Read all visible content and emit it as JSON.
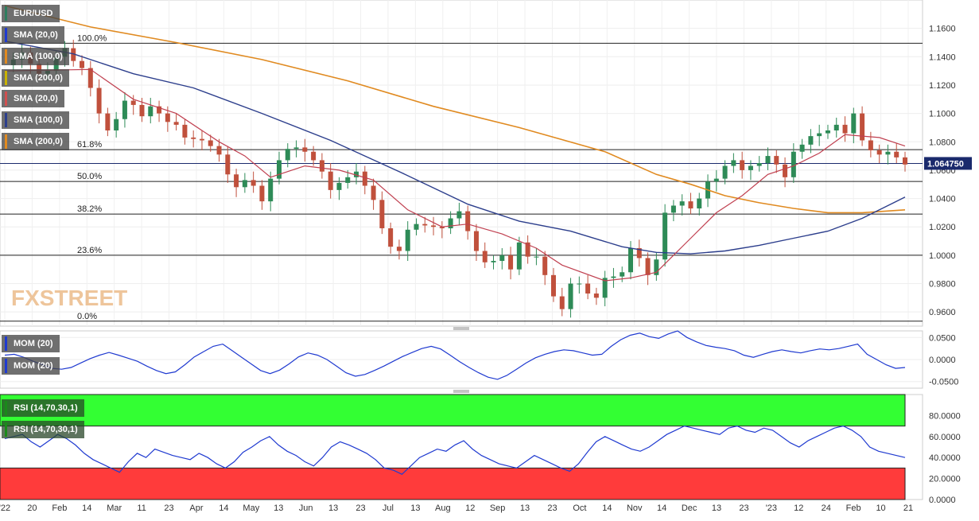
{
  "symbol": "EUR/USD",
  "brand": "FXSTREET",
  "legends": {
    "main": [
      {
        "label": "SMA (20,0)",
        "color": "#1f3ad0"
      },
      {
        "label": "SMA (100,0)",
        "color": "#e08a20"
      },
      {
        "label": "SMA (200,0)",
        "color": "#c9b200"
      },
      {
        "label": "SMA (20,0)",
        "color": "#d05050"
      },
      {
        "label": "SMA (100,0)",
        "color": "#2c3e8c"
      },
      {
        "label": "SMA (200,0)",
        "color": "#e08a20"
      }
    ],
    "mom": [
      {
        "label": "MOM (20)",
        "color": "#1f3ad0"
      },
      {
        "label": "MOM (20)",
        "color": "#1f3ad0"
      }
    ],
    "rsi": [
      {
        "label": "RSI (14,70,30,1)",
        "color": "#1a8a1a"
      },
      {
        "label": "RSI (14,70,30,1)",
        "color": "#1a8a1a"
      }
    ]
  },
  "chart_data": [
    {
      "type": "candlestick",
      "ylim": [
        0.95,
        1.18
      ],
      "yticks": [
        "1.1600",
        "1.1400",
        "1.1200",
        "1.1000",
        "1.0800",
        "1.0600",
        "1.0400",
        "1.0200",
        "1.0000",
        "0.9800",
        "0.9600"
      ],
      "current_price": "1.064750",
      "current_value": 1.06475,
      "x_labels": [
        "'22",
        "20",
        "Feb",
        "14",
        "Mar",
        "11",
        "23",
        "Apr",
        "14",
        "May",
        "13",
        "Jun",
        "13",
        "23",
        "Jul",
        "13",
        "Aug",
        "12",
        "Sep",
        "13",
        "23",
        "Oct",
        "14",
        "Nov",
        "14",
        "Dec",
        "13",
        "23",
        "'23",
        "12",
        "24",
        "Feb",
        "10",
        "21"
      ],
      "fib_levels": [
        {
          "label": "100.0%",
          "value": 1.1495
        },
        {
          "label": "61.8%",
          "value": 1.0745
        },
        {
          "label": "50.0%",
          "value": 1.052
        },
        {
          "label": "38.2%",
          "value": 1.029
        },
        {
          "label": "23.6%",
          "value": 1.0
        },
        {
          "label": "0.0%",
          "value": 0.9535
        }
      ],
      "price_path": [
        [
          0,
          1.134
        ],
        [
          1,
          1.138
        ],
        [
          2,
          1.143
        ],
        [
          3,
          1.135
        ],
        [
          4,
          1.128
        ],
        [
          5,
          1.13
        ],
        [
          6,
          1.14
        ],
        [
          7,
          1.146
        ],
        [
          8,
          1.137
        ],
        [
          9,
          1.132
        ],
        [
          10,
          1.118
        ],
        [
          11,
          1.1
        ],
        [
          12,
          1.088
        ],
        [
          13,
          1.096
        ],
        [
          14,
          1.109
        ],
        [
          15,
          1.106
        ],
        [
          16,
          1.098
        ],
        [
          17,
          1.105
        ],
        [
          18,
          1.1
        ],
        [
          19,
          1.094
        ],
        [
          20,
          1.092
        ],
        [
          21,
          1.083
        ],
        [
          22,
          1.082
        ],
        [
          23,
          1.081
        ],
        [
          24,
          1.077
        ],
        [
          25,
          1.071
        ],
        [
          26,
          1.057
        ],
        [
          27,
          1.048
        ],
        [
          28,
          1.053
        ],
        [
          29,
          1.049
        ],
        [
          30,
          1.038
        ],
        [
          31,
          1.054
        ],
        [
          32,
          1.067
        ],
        [
          33,
          1.075
        ],
        [
          34,
          1.076
        ],
        [
          35,
          1.073
        ],
        [
          36,
          1.067
        ],
        [
          37,
          1.059
        ],
        [
          38,
          1.046
        ],
        [
          39,
          1.051
        ],
        [
          40,
          1.055
        ],
        [
          41,
          1.059
        ],
        [
          42,
          1.049
        ],
        [
          43,
          1.039
        ],
        [
          44,
          1.019
        ],
        [
          45,
          1.006
        ],
        [
          46,
          1.003
        ],
        [
          47,
          1.018
        ],
        [
          48,
          1.022
        ],
        [
          49,
          1.021
        ],
        [
          50,
          1.02
        ],
        [
          51,
          1.019
        ],
        [
          52,
          1.026
        ],
        [
          53,
          1.031
        ],
        [
          54,
          1.017
        ],
        [
          55,
          1.003
        ],
        [
          56,
          0.995
        ],
        [
          57,
          0.996
        ],
        [
          58,
          1.0
        ],
        [
          59,
          0.99
        ],
        [
          60,
          1.009
        ],
        [
          61,
          0.999
        ],
        [
          62,
          0.999
        ],
        [
          63,
          0.986
        ],
        [
          64,
          0.971
        ],
        [
          65,
          0.962
        ],
        [
          66,
          0.98
        ],
        [
          67,
          0.98
        ],
        [
          68,
          0.973
        ],
        [
          69,
          0.97
        ],
        [
          70,
          0.984
        ],
        [
          71,
          0.985
        ],
        [
          72,
          0.988
        ],
        [
          73,
          1.005
        ],
        [
          74,
          0.998
        ],
        [
          75,
          0.986
        ],
        [
          76,
          0.997
        ],
        [
          77,
          1.03
        ],
        [
          78,
          1.035
        ],
        [
          79,
          1.038
        ],
        [
          80,
          1.033
        ],
        [
          81,
          1.04
        ],
        [
          82,
          1.052
        ],
        [
          83,
          1.054
        ],
        [
          84,
          1.063
        ],
        [
          85,
          1.067
        ],
        [
          86,
          1.06
        ],
        [
          87,
          1.063
        ],
        [
          88,
          1.065
        ],
        [
          89,
          1.07
        ],
        [
          90,
          1.064
        ],
        [
          91,
          1.055
        ],
        [
          92,
          1.073
        ],
        [
          93,
          1.078
        ],
        [
          94,
          1.084
        ],
        [
          95,
          1.086
        ],
        [
          96,
          1.088
        ],
        [
          97,
          1.092
        ],
        [
          98,
          1.086
        ],
        [
          99,
          1.1
        ],
        [
          100,
          1.081
        ],
        [
          101,
          1.074
        ],
        [
          102,
          1.071
        ],
        [
          103,
          1.073
        ],
        [
          104,
          1.069
        ],
        [
          105,
          1.064
        ]
      ],
      "n_candles": 106,
      "sma20": [
        [
          0,
          1.13
        ],
        [
          10,
          1.131
        ],
        [
          15,
          1.11
        ],
        [
          20,
          1.1
        ],
        [
          25,
          1.08
        ],
        [
          28,
          1.07
        ],
        [
          31,
          1.055
        ],
        [
          35,
          1.063
        ],
        [
          39,
          1.06
        ],
        [
          43,
          1.053
        ],
        [
          47,
          1.032
        ],
        [
          51,
          1.02
        ],
        [
          54,
          1.022
        ],
        [
          58,
          1.015
        ],
        [
          62,
          1.005
        ],
        [
          65,
          0.993
        ],
        [
          70,
          0.982
        ],
        [
          73,
          0.984
        ],
        [
          76,
          0.988
        ],
        [
          78,
          1.0
        ],
        [
          80,
          1.012
        ],
        [
          83,
          1.03
        ],
        [
          86,
          1.042
        ],
        [
          89,
          1.057
        ],
        [
          92,
          1.063
        ],
        [
          95,
          1.072
        ],
        [
          98,
          1.085
        ],
        [
          100,
          1.084
        ],
        [
          102,
          1.083
        ],
        [
          105,
          1.077
        ]
      ],
      "sma100": [
        [
          0,
          1.151
        ],
        [
          8,
          1.142
        ],
        [
          15,
          1.128
        ],
        [
          22,
          1.118
        ],
        [
          30,
          1.1
        ],
        [
          38,
          1.081
        ],
        [
          46,
          1.059
        ],
        [
          54,
          1.036
        ],
        [
          60,
          1.024
        ],
        [
          66,
          1.017
        ],
        [
          72,
          1.006
        ],
        [
          76,
          1.002
        ],
        [
          80,
          1.001
        ],
        [
          84,
          1.003
        ],
        [
          88,
          1.007
        ],
        [
          92,
          1.012
        ],
        [
          96,
          1.017
        ],
        [
          100,
          1.026
        ],
        [
          103,
          1.035
        ],
        [
          105,
          1.041
        ]
      ],
      "sma200": [
        [
          0,
          1.176
        ],
        [
          10,
          1.161
        ],
        [
          20,
          1.15
        ],
        [
          30,
          1.138
        ],
        [
          40,
          1.123
        ],
        [
          50,
          1.105
        ],
        [
          60,
          1.09
        ],
        [
          70,
          1.073
        ],
        [
          76,
          1.057
        ],
        [
          80,
          1.05
        ],
        [
          84,
          1.042
        ],
        [
          88,
          1.037
        ],
        [
          92,
          1.033
        ],
        [
          96,
          1.03
        ],
        [
          100,
          1.03
        ],
        [
          105,
          1.032
        ]
      ]
    },
    {
      "type": "line",
      "name": "MOM (20)",
      "ylim": [
        -0.065,
        0.065
      ],
      "yticks": [
        "0.0500",
        "0.0000",
        "-0.0500"
      ],
      "values": [
        0.01,
        0.012,
        0.005,
        -0.004,
        -0.012,
        -0.02,
        -0.022,
        -0.018,
        -0.008,
        0.002,
        0.01,
        0.016,
        0.01,
        0.003,
        -0.004,
        -0.015,
        -0.025,
        -0.032,
        -0.028,
        -0.012,
        0.006,
        0.018,
        0.03,
        0.035,
        0.02,
        0.005,
        -0.01,
        -0.025,
        -0.032,
        -0.024,
        -0.01,
        0.006,
        0.015,
        0.01,
        0.0,
        -0.015,
        -0.03,
        -0.038,
        -0.034,
        -0.025,
        -0.015,
        -0.004,
        0.007,
        0.016,
        0.025,
        0.03,
        0.024,
        0.01,
        -0.005,
        -0.018,
        -0.03,
        -0.04,
        -0.045,
        -0.036,
        -0.022,
        -0.008,
        0.004,
        0.012,
        0.018,
        0.022,
        0.02,
        0.015,
        0.01,
        0.012,
        0.03,
        0.045,
        0.055,
        0.06,
        0.052,
        0.048,
        0.058,
        0.065,
        0.05,
        0.04,
        0.032,
        0.028,
        0.025,
        0.02,
        0.01,
        0.005,
        0.012,
        0.018,
        0.022,
        0.018,
        0.015,
        0.02,
        0.024,
        0.022,
        0.025,
        0.03,
        0.035,
        0.012,
        0.0,
        -0.012,
        -0.02,
        -0.018
      ]
    },
    {
      "type": "line",
      "name": "RSI (14,70,30,1)",
      "ylim": [
        0,
        100
      ],
      "overbought": 70,
      "oversold": 30,
      "yticks": [
        "80.0000",
        "60.0000",
        "40.0000",
        "20.0000",
        "0.0000"
      ],
      "values": [
        58,
        60,
        62,
        55,
        50,
        56,
        62,
        58,
        52,
        44,
        38,
        34,
        30,
        26,
        36,
        44,
        40,
        48,
        45,
        42,
        40,
        38,
        44,
        40,
        34,
        30,
        36,
        45,
        50,
        56,
        60,
        52,
        46,
        42,
        36,
        32,
        40,
        50,
        55,
        52,
        48,
        44,
        38,
        30,
        28,
        24,
        32,
        40,
        44,
        48,
        46,
        52,
        56,
        48,
        42,
        38,
        34,
        32,
        30,
        36,
        42,
        38,
        34,
        30,
        27,
        34,
        45,
        55,
        60,
        56,
        52,
        48,
        46,
        50,
        56,
        62,
        66,
        70,
        68,
        66,
        64,
        62,
        68,
        70,
        66,
        64,
        68,
        66,
        60,
        54,
        50,
        56,
        60,
        64,
        68,
        70,
        66,
        60,
        50,
        46,
        44,
        42,
        40
      ]
    }
  ]
}
